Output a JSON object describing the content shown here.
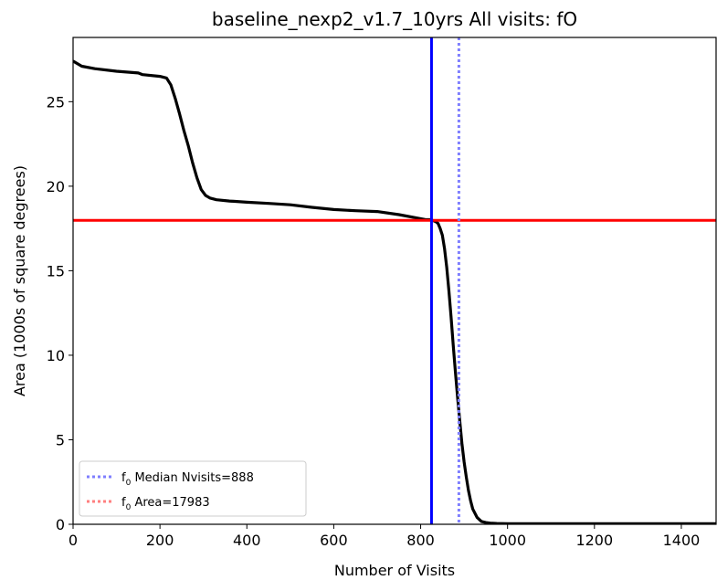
{
  "chart_data": {
    "type": "line",
    "title": "baseline_nexp2_v1.7_10yrs All visits: fO",
    "xlabel": "Number of Visits",
    "ylabel": "Area (1000s of square degrees)",
    "xlim": [
      0,
      1480
    ],
    "ylim": [
      0,
      28.8
    ],
    "xticks": [
      0,
      200,
      400,
      600,
      800,
      1000,
      1200,
      1400
    ],
    "yticks": [
      0,
      5,
      10,
      15,
      20,
      25
    ],
    "grid": false,
    "legend_position": "lower-left",
    "series": [
      {
        "color": "#000000",
        "x": [
          0,
          20,
          50,
          100,
          150,
          160,
          200,
          215,
          225,
          235,
          245,
          255,
          265,
          275,
          285,
          295,
          305,
          315,
          330,
          360,
          400,
          450,
          500,
          550,
          600,
          650,
          700,
          750,
          800,
          810,
          820,
          825,
          830,
          835,
          840,
          845,
          850,
          855,
          860,
          865,
          870,
          875,
          880,
          885,
          890,
          895,
          900,
          905,
          910,
          915,
          920,
          930,
          940,
          950,
          960,
          975,
          1000,
          1100,
          1200,
          1300,
          1400,
          1480
        ],
        "y": [
          27.4,
          27.1,
          26.95,
          26.8,
          26.7,
          26.6,
          26.5,
          26.4,
          26.0,
          25.2,
          24.3,
          23.3,
          22.4,
          21.4,
          20.5,
          19.8,
          19.45,
          19.3,
          19.2,
          19.12,
          19.05,
          18.98,
          18.9,
          18.75,
          18.62,
          18.55,
          18.5,
          18.32,
          18.08,
          18.03,
          18.02,
          18.0,
          17.95,
          17.9,
          17.8,
          17.5,
          17.1,
          16.3,
          15.2,
          13.8,
          12.3,
          10.6,
          9.0,
          7.5,
          6.1,
          4.8,
          3.7,
          2.8,
          2.0,
          1.4,
          0.9,
          0.4,
          0.17,
          0.1,
          0.07,
          0.05,
          0.04,
          0.04,
          0.04,
          0.04,
          0.04,
          0.04
        ]
      }
    ],
    "vlines": [
      {
        "x": 825,
        "color": "#0000ff",
        "style": "solid"
      },
      {
        "x": 888,
        "color": "#7f7fff",
        "style": "dotted"
      }
    ],
    "hlines": [
      {
        "y": 17.983,
        "color": "#ff0000",
        "style": "solid"
      }
    ],
    "legend": [
      {
        "label_main": "f",
        "label_sub": "0",
        "label_rest": " Median Nvisits=888",
        "color": "#7f7fff",
        "style": "dotted"
      },
      {
        "label_main": "f",
        "label_sub": "0",
        "label_rest": " Area=17983",
        "color": "#ff7f7f",
        "style": "dotted"
      }
    ]
  }
}
